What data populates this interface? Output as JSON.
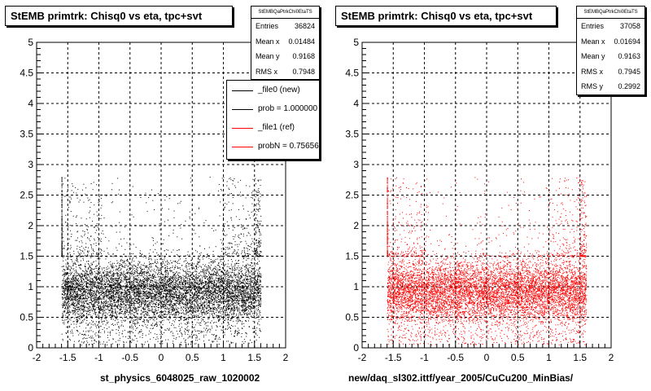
{
  "colors": {
    "left_markers": "#000000",
    "right_markers": "#ff0000",
    "grid": "#000000"
  },
  "left": {
    "title": "StEMB primtrk: Chisq0 vs eta, tpc+svt",
    "stats": {
      "header": "StEMBQaPtrkChi0EtaTS",
      "rows": [
        {
          "label": "Entries",
          "value": "36824"
        },
        {
          "label": "Mean x",
          "value": "0.01484"
        },
        {
          "label": "Mean y",
          "value": "0.9168"
        },
        {
          "label": "RMS x",
          "value": "0.7948"
        }
      ]
    },
    "legend": [
      {
        "label": "_file0 (new)",
        "color": "#000000"
      },
      {
        "label": "prob = 1.000000",
        "color": "#000000"
      },
      {
        "label": "_file1 (ref)",
        "color": "#ff0000"
      },
      {
        "label": "probN = 0.756560",
        "color": "#ff0000"
      }
    ],
    "xaxis_title": "st_physics_6048025_raw_1020002"
  },
  "right": {
    "title": "StEMB primtrk: Chisq0 vs eta, tpc+svt",
    "stats": {
      "header": "StEMBQaPtrkChi0EtaTS",
      "rows": [
        {
          "label": "Entries",
          "value": "37058"
        },
        {
          "label": "Mean x",
          "value": "0.01694"
        },
        {
          "label": "Mean y",
          "value": "0.9163"
        },
        {
          "label": "RMS x",
          "value": "0.7945"
        },
        {
          "label": "RMS y",
          "value": "0.2992"
        }
      ]
    },
    "xaxis_title": "new/daq_sl302.ittf/year_2005/CuCu200_MinBias/"
  },
  "chart_data": [
    {
      "type": "scatter",
      "title": "StEMB primtrk: Chisq0 vs eta, tpc+svt",
      "xlabel": "st_physics_6048025_raw_1020002",
      "ylabel": "",
      "xlim": [
        -2,
        2
      ],
      "ylim": [
        0,
        5
      ],
      "x_ticks": [
        "-2",
        "-1.5",
        "-1",
        "-0.5",
        "0",
        "0.5",
        "1",
        "1.5",
        "2"
      ],
      "y_ticks": [
        "0",
        "0.5",
        "1",
        "1.5",
        "2",
        "2.5",
        "3",
        "3.5",
        "4",
        "4.5",
        "5"
      ],
      "grid": true,
      "legend_position": "top-right",
      "series": [
        {
          "name": "_file0 (new)",
          "color": "#000000",
          "entries": 36824,
          "mean_x": 0.01484,
          "mean_y": 0.9168,
          "rms_x": 0.7948,
          "x_range": [
            -1.6,
            1.6
          ],
          "dense_y_range": [
            0.3,
            1.5
          ]
        }
      ]
    },
    {
      "type": "scatter",
      "title": "StEMB primtrk: Chisq0 vs eta, tpc+svt",
      "xlabel": "new/daq_sl302.ittf/year_2005/CuCu200_MinBias/",
      "ylabel": "",
      "xlim": [
        -2,
        2
      ],
      "ylim": [
        0,
        5
      ],
      "x_ticks": [
        "-2",
        "-1.5",
        "-1",
        "-0.5",
        "0",
        "0.5",
        "1",
        "1.5",
        "2"
      ],
      "y_ticks": [
        "0",
        "0.5",
        "1",
        "1.5",
        "2",
        "2.5",
        "3",
        "3.5",
        "4",
        "4.5",
        "5"
      ],
      "grid": true,
      "series": [
        {
          "name": "_file1 (ref)",
          "color": "#ff0000",
          "entries": 37058,
          "mean_x": 0.01694,
          "mean_y": 0.9163,
          "rms_x": 0.7945,
          "rms_y": 0.2992,
          "x_range": [
            -1.6,
            1.6
          ],
          "dense_y_range": [
            0.3,
            1.5
          ]
        }
      ]
    }
  ]
}
